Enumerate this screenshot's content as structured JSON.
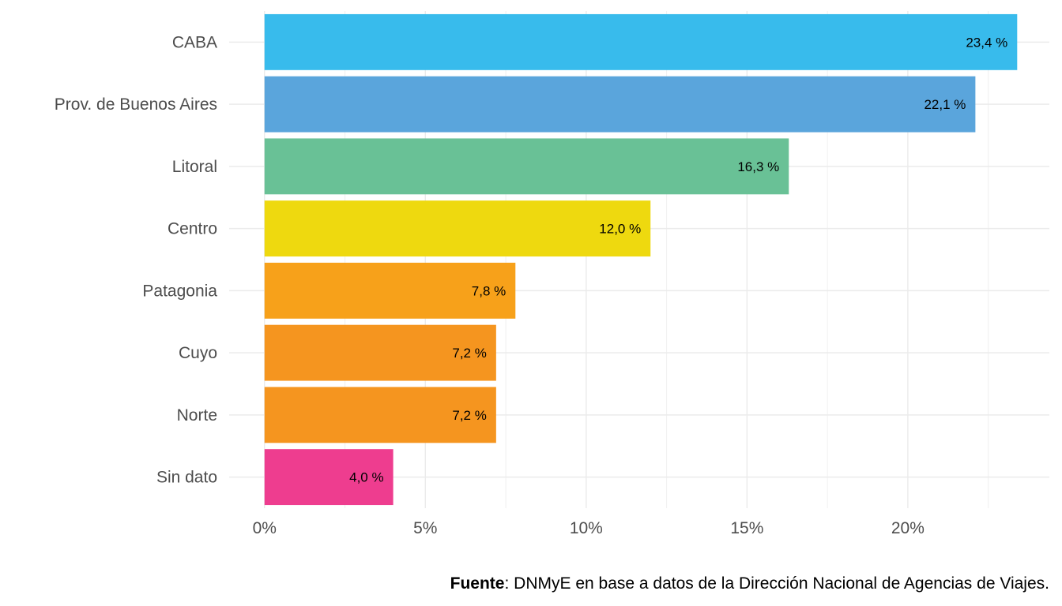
{
  "chart_data": {
    "type": "bar",
    "orientation": "horizontal",
    "categories": [
      "CABA",
      "Prov. de Buenos Aires",
      "Litoral",
      "Centro",
      "Patagonia",
      "Cuyo",
      "Norte",
      "Sin dato"
    ],
    "values": [
      23.4,
      22.1,
      16.3,
      12.0,
      7.8,
      7.2,
      7.2,
      4.0
    ],
    "data_labels": [
      "23,4 %",
      "22,1 %",
      "16,3 %",
      "12,0 %",
      "7,8 %",
      "7,2 %",
      "7,2 %",
      "4,0 %"
    ],
    "colors": [
      "#38bbec",
      "#5aa5dc",
      "#69c196",
      "#eed90f",
      "#f7a11a",
      "#f5951f",
      "#f5951f",
      "#ee3d8f"
    ],
    "x_ticks": [
      0,
      5,
      10,
      15,
      20
    ],
    "x_tick_labels": [
      "0%",
      "5%",
      "10%",
      "15%",
      "20%"
    ],
    "xlim": [
      -1.1,
      24.4
    ],
    "xlabel": "",
    "ylabel": "",
    "title": "",
    "grid": true,
    "legend": "none"
  },
  "caption": {
    "bold": "Fuente",
    "text": ": DNMyE en base a datos de la Dirección Nacional de Agencias de Viajes."
  }
}
